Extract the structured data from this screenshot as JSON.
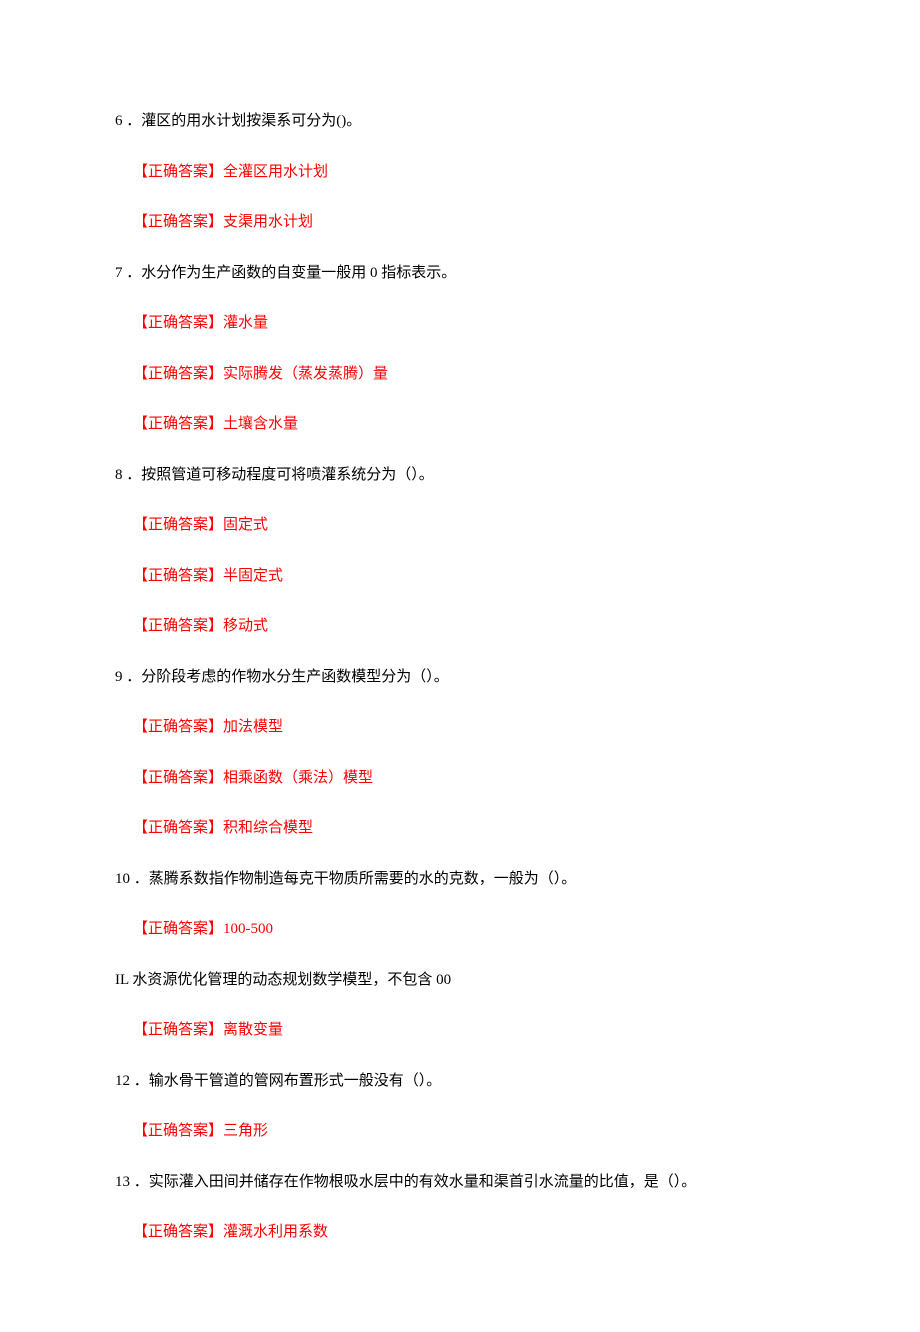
{
  "questions": [
    {
      "number": "6",
      "text": "．灌区的用水计划按渠系可分为()。",
      "answers": [
        "【正确答案】全灌区用水计划",
        "【正确答案】支渠用水计划"
      ]
    },
    {
      "number": "7",
      "text": "．水分作为生产函数的自变量一般用 0 指标表示。",
      "answers": [
        "【正确答案】灌水量",
        "【正确答案】实际腾发（蒸发蒸腾）量",
        "【正确答案】土壤含水量"
      ]
    },
    {
      "number": "8",
      "text": "．按照管道可移动程度可将喷灌系统分为（）。",
      "answers": [
        "【正确答案】固定式",
        "【正确答案】半固定式",
        "【正确答案】移动式"
      ]
    },
    {
      "number": "9",
      "text": "．分阶段考虑的作物水分生产函数模型分为（）。",
      "answers": [
        "【正确答案】加法模型",
        "【正确答案】相乘函数（乘法）模型",
        "【正确答案】积和综合模型"
      ]
    },
    {
      "number": "10",
      "text": "．蒸腾系数指作物制造每克干物质所需要的水的克数，一般为（）。",
      "answers": [
        "【正确答案】100-500"
      ]
    },
    {
      "number": "IL",
      "text": "水资源优化管理的动态规划数学模型，不包含 00",
      "answers": [
        "【正确答案】离散变量"
      ],
      "noSpace": true
    },
    {
      "number": "12",
      "text": "．输水骨干管道的管网布置形式一般没有（）。",
      "answers": [
        "【正确答案】三角形"
      ]
    },
    {
      "number": "13",
      "text": "．实际灌入田间并储存在作物根吸水层中的有效水量和渠首引水流量的比值，是（）。",
      "answers": [
        "【正确答案】灌溉水利用系数"
      ]
    }
  ],
  "colors": {
    "text": "#000000",
    "answer": "#ff0000",
    "background": "#ffffff"
  },
  "typography": {
    "font_family": "SimSun",
    "font_size": 15
  }
}
